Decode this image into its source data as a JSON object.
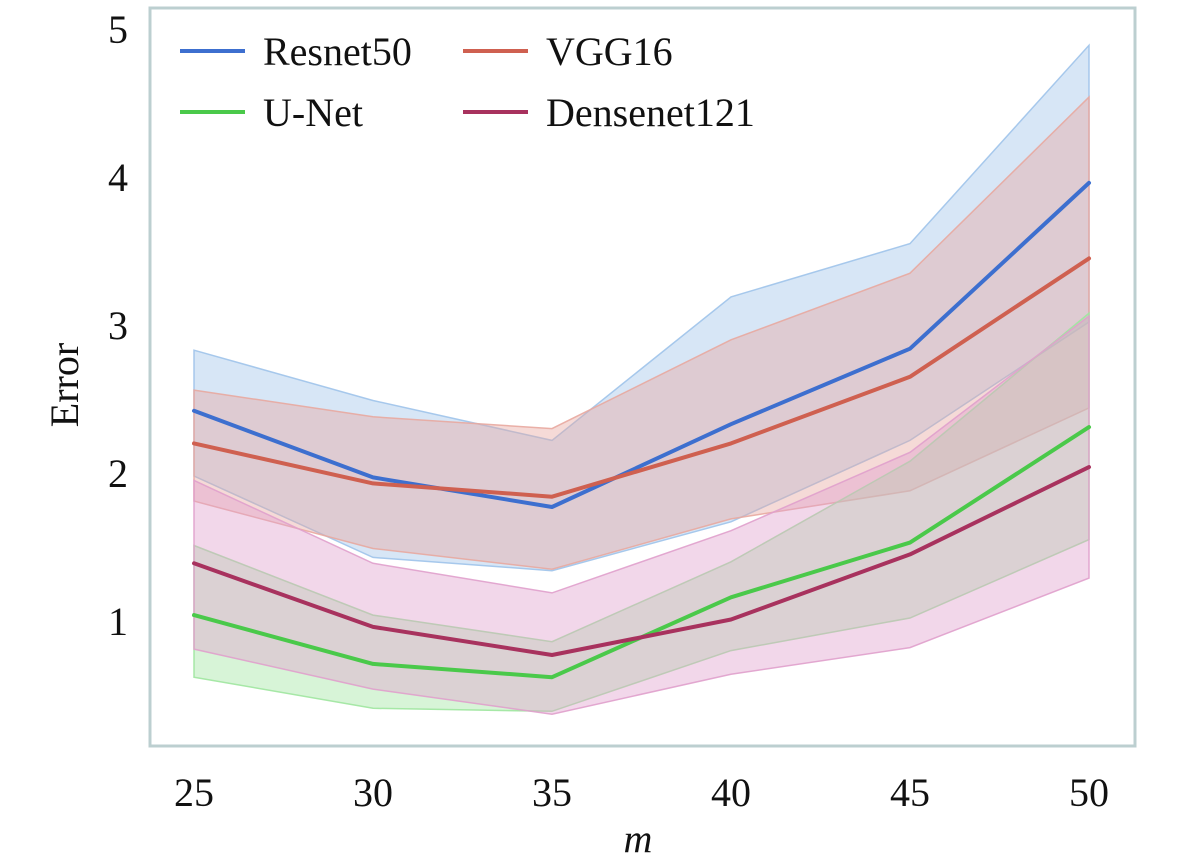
{
  "chart_data": {
    "type": "line",
    "xlabel": "m",
    "ylabel": "Error",
    "x": [
      25,
      30,
      35,
      40,
      45,
      50
    ],
    "xlim": [
      25,
      50
    ],
    "ylim": [
      0.15,
      5.0
    ],
    "xticks": [
      "25",
      "30",
      "35",
      "40",
      "45",
      "50"
    ],
    "yticks": [
      "1",
      "2",
      "3",
      "4",
      "5"
    ],
    "ytick_values": [
      1,
      2,
      3,
      4,
      5
    ],
    "grid": false,
    "legend_position": "top-left",
    "legend_columns": 2,
    "frame_color": "#bccfd0",
    "series": [
      {
        "name": "Resnet50",
        "color": "#3d6fcf",
        "band_color": "#9fc3ea",
        "values": [
          2.42,
          1.97,
          1.77,
          2.33,
          2.84,
          3.96
        ],
        "upper": [
          2.83,
          2.49,
          2.22,
          3.19,
          3.55,
          4.89
        ],
        "lower": [
          1.98,
          1.43,
          1.34,
          1.67,
          2.22,
          3.02
        ]
      },
      {
        "name": "VGG16",
        "color": "#cf6050",
        "band_color": "#e8a8a0",
        "values": [
          2.2,
          1.93,
          1.84,
          2.2,
          2.65,
          3.45
        ],
        "upper": [
          2.56,
          2.38,
          2.3,
          2.9,
          3.35,
          4.54
        ],
        "lower": [
          1.81,
          1.49,
          1.35,
          1.69,
          1.88,
          2.44
        ]
      },
      {
        "name": "U-Net",
        "color": "#4ac94a",
        "band_color": "#9fe59f",
        "values": [
          1.04,
          0.71,
          0.62,
          1.16,
          1.53,
          2.31
        ],
        "upper": [
          1.51,
          1.04,
          0.86,
          1.4,
          2.08,
          3.08
        ],
        "lower": [
          0.62,
          0.41,
          0.39,
          0.8,
          1.02,
          1.55
        ]
      },
      {
        "name": "Densenet121",
        "color": "#a8325e",
        "band_color": "#e0a0cc",
        "values": [
          1.39,
          0.96,
          0.77,
          1.01,
          1.45,
          2.04
        ],
        "upper": [
          1.95,
          1.39,
          1.19,
          1.61,
          2.14,
          3.06
        ],
        "lower": [
          0.81,
          0.54,
          0.37,
          0.64,
          0.82,
          1.29
        ]
      }
    ]
  }
}
